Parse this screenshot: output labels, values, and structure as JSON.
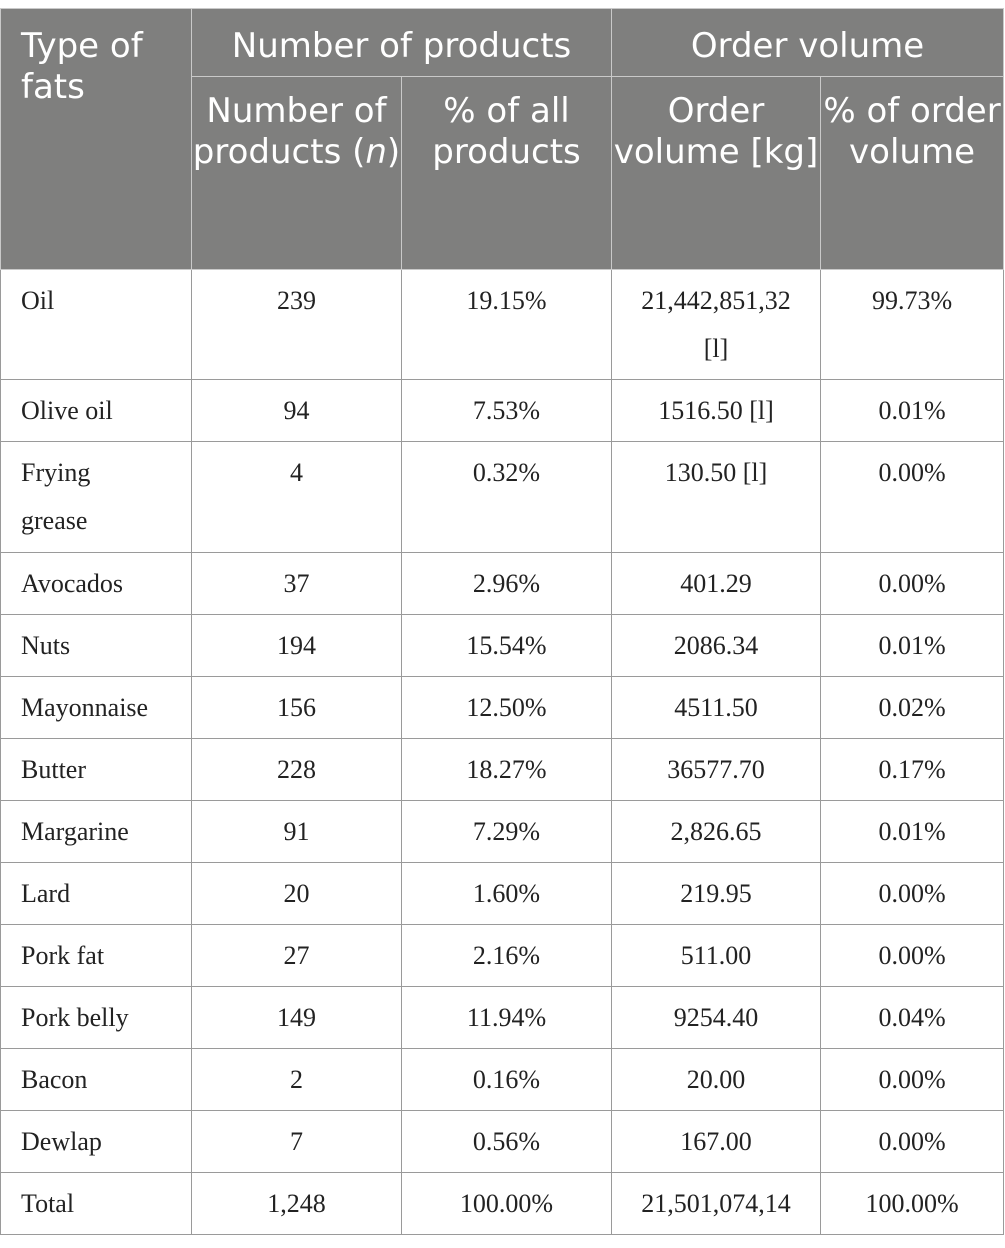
{
  "header": {
    "type_of_fats": "Type of fats",
    "number_of_products_group": "Number of products",
    "order_volume_group": "Order volume",
    "number_of_products_n_prefix": "Number of products (",
    "number_of_products_n_var": "n",
    "number_of_products_n_suffix": ")",
    "pct_all_products": "% of all products",
    "order_volume_kg": "Order volume [kg]",
    "pct_order_volume": "% of order volume"
  },
  "rows": [
    {
      "type": "Oil",
      "n": "239",
      "pct_products": "19.15%",
      "volume": "21,442,851,32 [l]",
      "pct_volume": "99.73%"
    },
    {
      "type": "Olive oil",
      "n": "94",
      "pct_products": "7.53%",
      "volume": "1516.50 [l]",
      "pct_volume": "0.01%"
    },
    {
      "type": "Frying grease",
      "n": "4",
      "pct_products": "0.32%",
      "volume": "130.50 [l]",
      "pct_volume": "0.00%"
    },
    {
      "type": "Avocados",
      "n": "37",
      "pct_products": "2.96%",
      "volume": "401.29",
      "pct_volume": "0.00%"
    },
    {
      "type": "Nuts",
      "n": "194",
      "pct_products": "15.54%",
      "volume": "2086.34",
      "pct_volume": "0.01%"
    },
    {
      "type": "Mayonnaise",
      "n": "156",
      "pct_products": "12.50%",
      "volume": "4511.50",
      "pct_volume": "0.02%"
    },
    {
      "type": "Butter",
      "n": "228",
      "pct_products": "18.27%",
      "volume": "36577.70",
      "pct_volume": "0.17%"
    },
    {
      "type": "Margarine",
      "n": "91",
      "pct_products": "7.29%",
      "volume": "2,826.65",
      "pct_volume": "0.01%"
    },
    {
      "type": "Lard",
      "n": "20",
      "pct_products": "1.60%",
      "volume": "219.95",
      "pct_volume": "0.00%"
    },
    {
      "type": "Pork fat",
      "n": "27",
      "pct_products": "2.16%",
      "volume": "511.00",
      "pct_volume": "0.00%"
    },
    {
      "type": "Pork belly",
      "n": "149",
      "pct_products": "11.94%",
      "volume": "9254.40",
      "pct_volume": "0.04%"
    },
    {
      "type": "Bacon",
      "n": "2",
      "pct_products": "0.16%",
      "volume": "20.00",
      "pct_volume": "0.00%"
    },
    {
      "type": "Dewlap",
      "n": "7",
      "pct_products": "0.56%",
      "volume": "167.00",
      "pct_volume": "0.00%"
    },
    {
      "type": "Total",
      "n": "1,248",
      "pct_products": "100.00%",
      "volume": "21,501,074,14",
      "pct_volume": "100.00%"
    }
  ]
}
